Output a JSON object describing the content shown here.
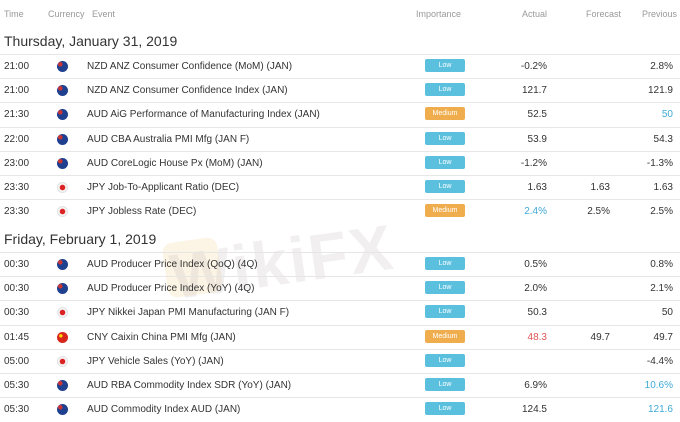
{
  "header": {
    "time": "Time",
    "currency": "Currency",
    "event": "Event",
    "importance": "Importance",
    "actual": "Actual",
    "forecast": "Forecast",
    "previous": "Previous"
  },
  "watermark": "WikiFX",
  "colors": {
    "low": "#5bc0de",
    "medium": "#f0ad4e",
    "red": "#e05555",
    "blue": "#3fa9d8"
  },
  "days": [
    {
      "date": "Thursday, January 31, 2019",
      "rows": [
        {
          "time": "21:00",
          "flag": "nz",
          "event": "NZD ANZ Consumer Confidence (MoM) (JAN)",
          "importance": "Low",
          "actual": "-0.2%",
          "forecast": "",
          "previous": "2.8%"
        },
        {
          "time": "21:00",
          "flag": "nz",
          "event": "NZD ANZ Consumer Confidence Index (JAN)",
          "importance": "Low",
          "actual": "121.7",
          "forecast": "",
          "previous": "121.9"
        },
        {
          "time": "21:30",
          "flag": "au",
          "event": "AUD AiG Performance of Manufacturing Index (JAN)",
          "importance": "Medium",
          "actual": "52.5",
          "forecast": "",
          "previous": "50",
          "previous_color": "blue"
        },
        {
          "time": "22:00",
          "flag": "au",
          "event": "AUD CBA Australia PMI Mfg (JAN F)",
          "importance": "Low",
          "actual": "53.9",
          "forecast": "",
          "previous": "54.3"
        },
        {
          "time": "23:00",
          "flag": "au",
          "event": "AUD CoreLogic House Px (MoM) (JAN)",
          "importance": "Low",
          "actual": "-1.2%",
          "forecast": "",
          "previous": "-1.3%"
        },
        {
          "time": "23:30",
          "flag": "jp",
          "event": "JPY Job-To-Applicant Ratio (DEC)",
          "importance": "Low",
          "actual": "1.63",
          "forecast": "1.63",
          "previous": "1.63"
        },
        {
          "time": "23:30",
          "flag": "jp",
          "event": "JPY Jobless Rate (DEC)",
          "importance": "Medium",
          "actual": "2.4%",
          "actual_color": "blue",
          "forecast": "2.5%",
          "previous": "2.5%"
        }
      ]
    },
    {
      "date": "Friday, February 1, 2019",
      "rows": [
        {
          "time": "00:30",
          "flag": "au",
          "event": "AUD Producer Price Index (QoQ) (4Q)",
          "importance": "Low",
          "actual": "0.5%",
          "forecast": "",
          "previous": "0.8%"
        },
        {
          "time": "00:30",
          "flag": "au",
          "event": "AUD Producer Price Index (YoY) (4Q)",
          "importance": "Low",
          "actual": "2.0%",
          "forecast": "",
          "previous": "2.1%"
        },
        {
          "time": "00:30",
          "flag": "jp",
          "event": "JPY Nikkei Japan PMI Manufacturing (JAN F)",
          "importance": "Low",
          "actual": "50.3",
          "forecast": "",
          "previous": "50"
        },
        {
          "time": "01:45",
          "flag": "cn",
          "event": "CNY Caixin China PMI Mfg (JAN)",
          "importance": "Medium",
          "actual": "48.3",
          "actual_color": "red",
          "forecast": "49.7",
          "previous": "49.7"
        },
        {
          "time": "05:00",
          "flag": "jp",
          "event": "JPY Vehicle Sales (YoY) (JAN)",
          "importance": "Low",
          "actual": "",
          "forecast": "",
          "previous": "-4.4%"
        },
        {
          "time": "05:30",
          "flag": "au",
          "event": "AUD RBA Commodity Index SDR (YoY) (JAN)",
          "importance": "Low",
          "actual": "6.9%",
          "forecast": "",
          "previous": "10.6%",
          "previous_color": "blue"
        },
        {
          "time": "05:30",
          "flag": "au",
          "event": "AUD Commodity Index AUD (JAN)",
          "importance": "Low",
          "actual": "124.5",
          "forecast": "",
          "previous": "121.6",
          "previous_color": "blue"
        }
      ]
    }
  ]
}
